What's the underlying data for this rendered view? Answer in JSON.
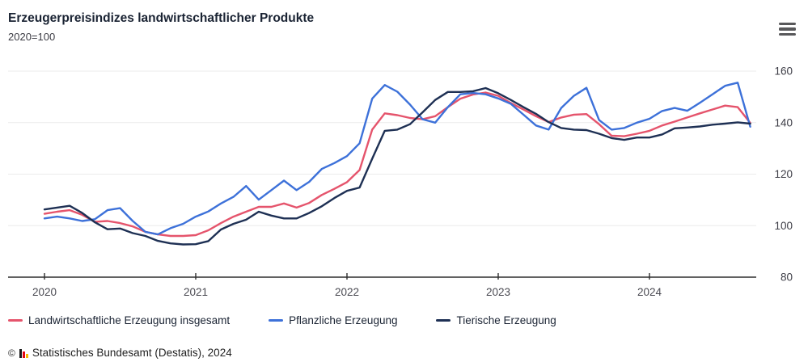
{
  "header": {
    "title": "Erzeugerpreisindizes landwirtschaftlicher Produkte",
    "subtitle": "2020=100"
  },
  "chart_data": {
    "type": "line",
    "title": "Erzeugerpreisindizes landwirtschaftlicher Produkte",
    "base_note": "2020=100",
    "x_unit": "month",
    "x_range": [
      "2020-01",
      "2024-09"
    ],
    "ylim": [
      80,
      160
    ],
    "yticks": [
      80,
      100,
      120,
      140,
      160
    ],
    "grid": "horizontal",
    "legend_position": "bottom",
    "xticks": [
      {
        "label": "2020",
        "month_index": 0
      },
      {
        "label": "2021",
        "month_index": 12
      },
      {
        "label": "2022",
        "month_index": 24
      },
      {
        "label": "2023",
        "month_index": 36
      },
      {
        "label": "2024",
        "month_index": 48
      }
    ],
    "series": [
      {
        "name": "Landwirtschaftliche Erzeugung insgesamt",
        "color": "#e5546c",
        "values": [
          104.6,
          105.4,
          106.0,
          104.2,
          101.5,
          101.8,
          101.0,
          99.7,
          97.6,
          96.6,
          96.0,
          96.0,
          96.3,
          98.2,
          101.0,
          103.5,
          105.4,
          107.3,
          107.3,
          108.6,
          107.0,
          108.8,
          111.9,
          114.3,
          116.9,
          121.6,
          137.3,
          143.6,
          142.9,
          141.8,
          141.3,
          142.5,
          146.0,
          149.3,
          150.9,
          151.7,
          150.4,
          147.6,
          145.1,
          142.5,
          140.2,
          142.0,
          143.1,
          143.3,
          139.4,
          134.9,
          134.7,
          135.7,
          136.8,
          138.9,
          140.4,
          142.0,
          143.6,
          145.1,
          146.6,
          146.0,
          139.9
        ]
      },
      {
        "name": "Pflanzliche Erzeugung",
        "color": "#3d71d9",
        "values": [
          102.8,
          103.5,
          102.8,
          101.8,
          102.5,
          106.0,
          106.8,
          101.8,
          97.6,
          96.6,
          99.0,
          100.7,
          103.5,
          105.5,
          108.6,
          111.2,
          115.4,
          110.1,
          113.8,
          117.5,
          113.8,
          117.0,
          122.0,
          124.3,
          127.0,
          132.0,
          149.3,
          154.6,
          152.0,
          147.0,
          141.3,
          140.0,
          146.0,
          151.0,
          151.5,
          151.0,
          149.4,
          147.3,
          143.1,
          138.9,
          137.3,
          145.7,
          150.4,
          153.5,
          141.0,
          137.3,
          137.9,
          140.0,
          141.5,
          144.5,
          145.7,
          144.6,
          147.7,
          151.0,
          154.3,
          155.5,
          138.4
        ]
      },
      {
        "name": "Tierische Erzeugung",
        "color": "#1e3054",
        "values": [
          106.3,
          107.0,
          107.7,
          104.9,
          101.3,
          98.6,
          98.9,
          97.1,
          96.0,
          94.1,
          93.1,
          92.7,
          92.8,
          94.0,
          98.5,
          100.7,
          102.3,
          105.4,
          103.9,
          102.8,
          102.8,
          104.9,
          107.5,
          110.7,
          113.5,
          114.8,
          126.0,
          136.8,
          137.3,
          139.4,
          144.0,
          148.8,
          151.9,
          151.9,
          152.2,
          153.4,
          151.4,
          148.8,
          146.0,
          143.4,
          140.2,
          137.9,
          137.3,
          137.1,
          135.7,
          134.0,
          133.3,
          134.2,
          134.2,
          135.4,
          137.8,
          138.1,
          138.5,
          139.2,
          139.6,
          140.1,
          139.6
        ]
      }
    ]
  },
  "footer": {
    "copyright": "©",
    "source": "Statistisches Bundesamt (Destatis), 2024"
  }
}
